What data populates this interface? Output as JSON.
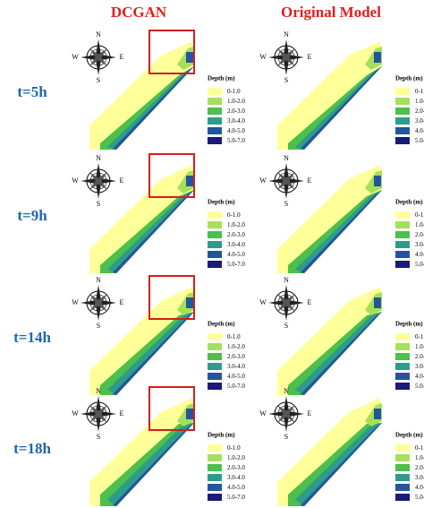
{
  "headers": [
    "DCGAN",
    "Original Model"
  ],
  "rows": [
    "t=5h",
    "t=9h",
    "t=14h",
    "t=18h"
  ],
  "compass": {
    "N": "N",
    "E": "E",
    "S": "S",
    "W": "W"
  },
  "legend": {
    "title": "Depth (m)",
    "items": [
      {
        "label": "0-1.0",
        "color": "#ffff99"
      },
      {
        "label": "1.0-2.0",
        "color": "#a6e05a"
      },
      {
        "label": "2.0-3.0",
        "color": "#4cbf4c"
      },
      {
        "label": "3.0-4.0",
        "color": "#2e9c8a"
      },
      {
        "label": "4.0-5.0",
        "color": "#24559c"
      },
      {
        "label": "5.0-7.0",
        "color": "#1a1a7a"
      }
    ]
  }
}
